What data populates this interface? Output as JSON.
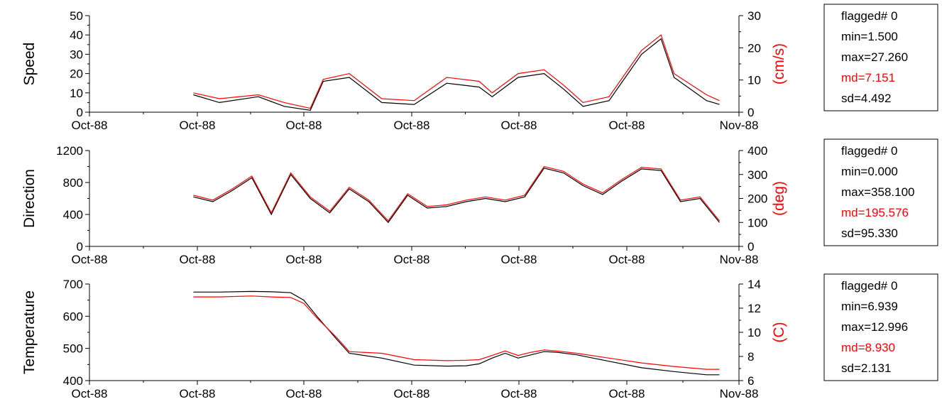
{
  "colors": {
    "series_black": "#000000",
    "series_red": "#ff0000",
    "axis": "#000000"
  },
  "chart_data": [
    {
      "type": "line",
      "title": "",
      "xlabel": "",
      "ylabel": "Speed",
      "y2label": "(cm/s)",
      "x_tick_labels": [
        "Oct-88",
        "Oct-88",
        "Oct-88",
        "Oct-88",
        "Oct-88",
        "Oct-88",
        "Nov-88"
      ],
      "ylim": [
        0,
        50
      ],
      "yticks": [
        0,
        10,
        20,
        30,
        40,
        50
      ],
      "y2lim": [
        0,
        30
      ],
      "y2ticks": [
        0,
        10,
        20,
        30
      ],
      "x": [
        0.16,
        0.2,
        0.26,
        0.3,
        0.34,
        0.36,
        0.4,
        0.45,
        0.5,
        0.55,
        0.6,
        0.62,
        0.66,
        0.7,
        0.73,
        0.76,
        0.8,
        0.85,
        0.88,
        0.9,
        0.95,
        0.97
      ],
      "series": [
        {
          "values": [
            9,
            5,
            8,
            3,
            1,
            16,
            18,
            5,
            4,
            15,
            13,
            8,
            18,
            20,
            12,
            3,
            6,
            30,
            38,
            18,
            6,
            4
          ]
        },
        {
          "values": [
            10,
            7,
            9,
            5,
            2,
            17,
            20,
            7,
            6,
            18,
            16,
            10,
            20,
            22,
            14,
            5,
            8,
            32,
            40,
            20,
            9,
            6
          ]
        }
      ],
      "stats": {
        "flagged": "flagged# 0",
        "min": "min=1.500",
        "max": "max=27.260",
        "md": "md=7.151",
        "sd": "sd=4.492"
      }
    },
    {
      "type": "line",
      "title": "",
      "xlabel": "",
      "ylabel": "Direction",
      "y2label": "(deg)",
      "x_tick_labels": [
        "Oct-88",
        "Oct-88",
        "Oct-88",
        "Oct-88",
        "Oct-88",
        "Oct-88",
        "Nov-88"
      ],
      "ylim": [
        0,
        1200
      ],
      "yticks": [
        0,
        400,
        800,
        1200
      ],
      "y2lim": [
        0,
        400
      ],
      "y2ticks": [
        0,
        100,
        200,
        300,
        400
      ],
      "x": [
        0.16,
        0.19,
        0.22,
        0.25,
        0.28,
        0.31,
        0.34,
        0.37,
        0.4,
        0.43,
        0.46,
        0.49,
        0.52,
        0.55,
        0.58,
        0.61,
        0.64,
        0.67,
        0.7,
        0.73,
        0.76,
        0.79,
        0.82,
        0.85,
        0.88,
        0.91,
        0.94,
        0.97
      ],
      "series": [
        {
          "values": [
            620,
            560,
            700,
            860,
            400,
            900,
            600,
            420,
            720,
            560,
            300,
            640,
            480,
            500,
            560,
            600,
            560,
            620,
            980,
            920,
            760,
            650,
            820,
            970,
            950,
            560,
            600,
            300
          ]
        },
        {
          "values": [
            640,
            580,
            720,
            880,
            420,
            920,
            620,
            440,
            740,
            580,
            320,
            660,
            500,
            520,
            580,
            620,
            580,
            640,
            1000,
            940,
            780,
            670,
            840,
            990,
            970,
            580,
            620,
            320
          ]
        }
      ],
      "stats": {
        "flagged": "flagged# 0",
        "min": "min=0.000",
        "max": "max=358.100",
        "md": "md=195.576",
        "sd": "sd=95.330"
      }
    },
    {
      "type": "line",
      "title": "",
      "xlabel": "",
      "ylabel": "Temperature",
      "y2label": "(C)",
      "x_tick_labels": [
        "Oct-88",
        "Oct-88",
        "Oct-88",
        "Oct-88",
        "Oct-88",
        "Oct-88",
        "Nov-88"
      ],
      "ylim": [
        400,
        700
      ],
      "yticks": [
        400,
        500,
        600,
        700
      ],
      "y2lim": [
        6,
        14
      ],
      "y2ticks": [
        6,
        8,
        10,
        12,
        14
      ],
      "x": [
        0.16,
        0.2,
        0.25,
        0.28,
        0.31,
        0.33,
        0.35,
        0.38,
        0.4,
        0.45,
        0.5,
        0.55,
        0.58,
        0.6,
        0.62,
        0.64,
        0.66,
        0.68,
        0.7,
        0.72,
        0.75,
        0.8,
        0.85,
        0.9,
        0.95,
        0.97
      ],
      "series": [
        {
          "values": [
            675,
            675,
            677,
            676,
            673,
            650,
            600,
            530,
            485,
            470,
            448,
            445,
            446,
            452,
            470,
            485,
            470,
            480,
            490,
            488,
            480,
            460,
            440,
            428,
            418,
            418
          ]
        },
        {
          "values": [
            660,
            660,
            663,
            660,
            658,
            640,
            595,
            535,
            490,
            485,
            465,
            462,
            463,
            465,
            478,
            492,
            478,
            488,
            495,
            492,
            485,
            470,
            455,
            444,
            435,
            435
          ]
        }
      ],
      "stats": {
        "flagged": "flagged# 0",
        "min": "min=6.939",
        "max": "max=12.996",
        "md": "md=8.930",
        "sd": "sd=2.131"
      }
    }
  ]
}
